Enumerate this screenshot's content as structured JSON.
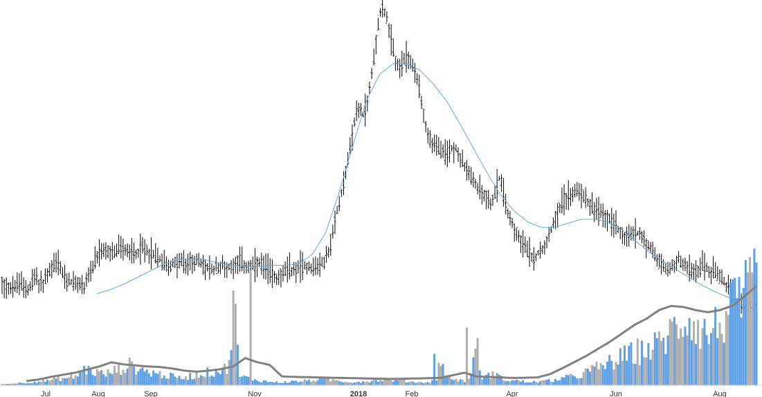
{
  "chart_data": {
    "type": "ohlc",
    "title": "",
    "xlabel": "",
    "ylabel": "",
    "x_ticks": [
      "Jul",
      "Aug",
      "Sep",
      "Nov",
      "2018",
      "Feb",
      "Apr",
      "Jun",
      "Aug"
    ],
    "bold_ticks": [
      "2018"
    ],
    "grid": false,
    "legend": "none",
    "price_panel": {
      "series": [
        {
          "type": "ohlc",
          "color": "#000000",
          "close_path": [
            0.205,
            0.19,
            0.175,
            0.188,
            0.2,
            0.185,
            0.165,
            0.26,
            0.21,
            0.2,
            0.28,
            0.32,
            0.37,
            0.3,
            0.22,
            0.22,
            0.2,
            0.19,
            0.19,
            0.28,
            0.32,
            0.4,
            0.45,
            0.44,
            0.42,
            0.45,
            0.48,
            0.45,
            0.44,
            0.43,
            0.45,
            0.47,
            0.44,
            0.42,
            0.4,
            0.38,
            0.35,
            0.33,
            0.36,
            0.37,
            0.33,
            0.36,
            0.38,
            0.36,
            0.34,
            0.31,
            0.3,
            0.33,
            0.34,
            0.32,
            0.33,
            0.36,
            0.38,
            0.34,
            0.32,
            0.33,
            0.35,
            0.33,
            0.31,
            0.28,
            0.25,
            0.27,
            0.29,
            0.31,
            0.3,
            0.33,
            0.34,
            0.33,
            0.32,
            0.34,
            0.35,
            0.4,
            0.5,
            0.7,
            0.85,
            1.0,
            1.18,
            1.4,
            1.5,
            1.45,
            1.55,
            1.8,
            2.05,
            2.28,
            2.18,
            2.0,
            1.85,
            1.8,
            1.85,
            1.88,
            1.78,
            1.7,
            1.5,
            1.3,
            1.25,
            1.22,
            1.18,
            1.15,
            1.2,
            1.22,
            1.15,
            1.08,
            1.02,
            0.96,
            0.92,
            0.88,
            0.84,
            0.8,
            0.88,
            1.02,
            0.8,
            0.7,
            0.62,
            0.56,
            0.5,
            0.44,
            0.4,
            0.42,
            0.46,
            0.52,
            0.6,
            0.7,
            0.78,
            0.82,
            0.86,
            0.88,
            0.9,
            0.86,
            0.82,
            0.78,
            0.74,
            0.72,
            0.7,
            0.68,
            0.65,
            0.6,
            0.56,
            0.55,
            0.57,
            0.58,
            0.55,
            0.5,
            0.45,
            0.4,
            0.35,
            0.32,
            0.3,
            0.35,
            0.38,
            0.36,
            0.32,
            0.28,
            0.3,
            0.34,
            0.32,
            0.3,
            0.28,
            0.25,
            0.2,
            0.16,
            0.1,
            0.05,
            0.04,
            0.05,
            0.03,
            0.02
          ],
          "close_end": 0.02
        },
        {
          "type": "moving-average",
          "color": "#5fa8e8",
          "path": [
            0.13,
            0.16,
            0.2,
            0.25,
            0.3,
            0.35,
            0.38,
            0.39,
            0.38,
            0.36,
            0.34,
            0.33,
            0.33,
            0.34,
            0.34,
            0.35,
            0.42,
            0.58,
            0.88,
            1.22,
            1.55,
            1.75,
            1.83,
            1.83,
            1.78,
            1.68,
            1.55,
            1.38,
            1.2,
            1.02,
            0.86,
            0.74,
            0.66,
            0.62,
            0.62,
            0.65,
            0.68,
            0.68,
            0.66,
            0.6,
            0.52,
            0.44,
            0.37,
            0.31,
            0.25,
            0.19,
            0.14,
            0.1,
            0.08,
            0.06
          ]
        }
      ]
    },
    "volume_panel": {
      "bar_colors": [
        "#5aa0ea",
        "#b0b0b0"
      ],
      "average_line_color": "#808080",
      "values": [
        0.1,
        0.12,
        0.15,
        0.2,
        0.22,
        0.25,
        0.3,
        0.35,
        0.4,
        0.45,
        0.5,
        0.6,
        0.7,
        0.65,
        0.8,
        0.9,
        1.4,
        1.6,
        1.5,
        1.3,
        1.2,
        1.1,
        1.3,
        1.5,
        1.7,
        1.9,
        2.0,
        1.8,
        1.6,
        1.4,
        1.3,
        1.2,
        1.1,
        1.0,
        0.9,
        0.8,
        0.7,
        0.8,
        0.9,
        1.0,
        1.1,
        1.2,
        1.3,
        1.4,
        1.5,
        1.6,
        1.7,
        11.0,
        0.9,
        0.8,
        0.7,
        0.6,
        0.5,
        0.4,
        0.35,
        0.3,
        0.28,
        0.3,
        0.32,
        0.35,
        0.38,
        0.4,
        0.45,
        0.5,
        0.55,
        0.6,
        0.55,
        0.5,
        0.45,
        0.4,
        0.35,
        0.3,
        0.32,
        0.35,
        0.4,
        0.45,
        0.5,
        0.55,
        0.6,
        0.55,
        0.5,
        0.45,
        0.4,
        0.35,
        0.3,
        0.28,
        0.3,
        0.35,
        0.5,
        3.0,
        0.8,
        0.7,
        0.6,
        0.5,
        0.45,
        0.5,
        5.5,
        0.9,
        0.8,
        1.0,
        1.2,
        0.7,
        0.6,
        0.5,
        0.45,
        0.4,
        0.35,
        0.3,
        0.32,
        0.35,
        0.4,
        0.45,
        0.5,
        0.6,
        0.7,
        0.8,
        0.9,
        1.0,
        1.2,
        1.4,
        1.6,
        1.8,
        2.0,
        2.2,
        2.4,
        2.6,
        2.8,
        3.0,
        3.2,
        3.4,
        3.5,
        3.6,
        3.8,
        4.0,
        4.5,
        5.0,
        5.5,
        6.0,
        6.5,
        7.0,
        6.5,
        6.0,
        5.5,
        5.0,
        5.5,
        6.0,
        6.5,
        7.0,
        7.5,
        8.0,
        8.5,
        9.0,
        9.5,
        10.0
      ],
      "avg_path": [
        0.4,
        0.55,
        0.8,
        1.0,
        1.2,
        1.5,
        1.8,
        2.2,
        2.0,
        1.9,
        1.8,
        1.75,
        1.6,
        1.4,
        1.3,
        1.4,
        1.55,
        1.8,
        2.6,
        2.2,
        1.95,
        0.85,
        0.8,
        0.78,
        0.75,
        0.72,
        0.7,
        0.68,
        0.65,
        0.62,
        0.6,
        0.62,
        0.65,
        0.68,
        0.7,
        0.95,
        1.2,
        0.85,
        0.8,
        0.75,
        0.7,
        0.72,
        0.75,
        1.05,
        1.6,
        2.2,
        2.8,
        3.5,
        4.2,
        5.0,
        5.8,
        6.4,
        7.2,
        7.6,
        7.5,
        7.2,
        7.0,
        7.2,
        7.6,
        8.5,
        9.5
      ]
    }
  }
}
